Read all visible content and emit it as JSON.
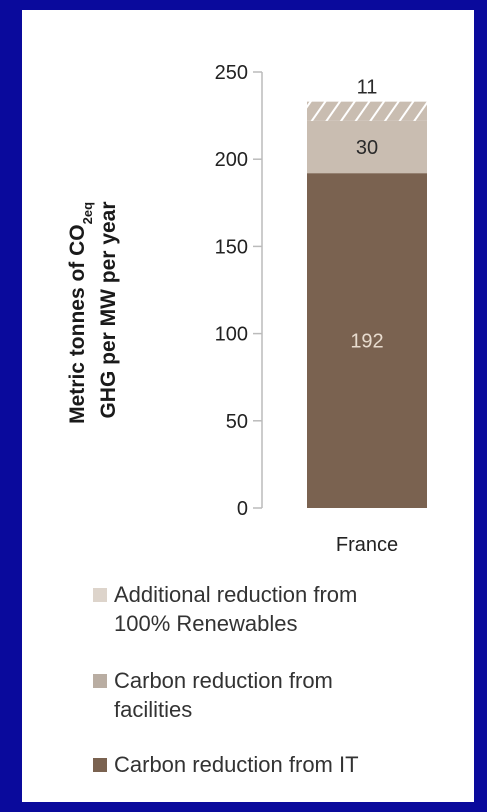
{
  "chart_data": {
    "type": "bar",
    "stacked": true,
    "categories": [
      "France"
    ],
    "series": [
      {
        "name": "Carbon reduction from IT",
        "values": [
          192
        ],
        "color": "#7a6250",
        "label_color": "#e8dccf"
      },
      {
        "name": "Carbon reduction from facilities",
        "values": [
          30
        ],
        "color": "#c9bdb1",
        "label_color": "#2a2a2a"
      },
      {
        "name": "Additional reduction from 100% Renewables",
        "values": [
          11
        ],
        "color": "#c9bdb1",
        "pattern": "hatch",
        "label_color": "#2a2a2a"
      }
    ],
    "legend": [
      {
        "line1": "Additional reduction from",
        "line2": "100% Renewables",
        "color": "#ddd4cb"
      },
      {
        "line1": "Carbon reduction from",
        "line2": "facilities",
        "color": "#b9ada2"
      },
      {
        "line1": "Carbon reduction from IT",
        "line2": "",
        "color": "#7a6250"
      }
    ],
    "ylabel_line1": "Metric tonnes of CO",
    "ylabel_sub": "2eq",
    "ylabel_line2": "GHG per MW per year",
    "yticks": [
      0,
      50,
      100,
      150,
      200,
      250
    ],
    "ylim": [
      0,
      250
    ],
    "grid": false,
    "legend_position": "bottom"
  }
}
